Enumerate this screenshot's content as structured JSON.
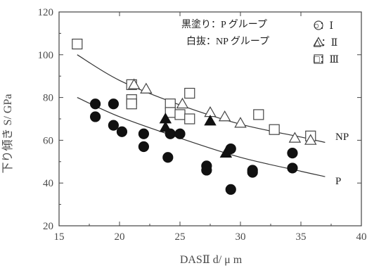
{
  "chart_data": {
    "type": "scatter",
    "xlabel": "DASⅡ   d/ μ m",
    "ylabel": "下り傾き    S/ GPa",
    "xlim": [
      15,
      40
    ],
    "ylim": [
      20,
      120
    ],
    "xticks": [
      15,
      20,
      25,
      30,
      35,
      40
    ],
    "yticks": [
      20,
      40,
      60,
      80,
      100,
      120
    ],
    "grid": false,
    "legend_fill_notes": [
      "黒塗り：P グループ",
      "白抜：NP グループ"
    ],
    "legend_markers": [
      {
        "symbol": "circle",
        "label": "○：Ⅰ"
      },
      {
        "symbol": "triangle",
        "label": "△：Ⅱ"
      },
      {
        "symbol": "square",
        "label": "□：Ⅲ"
      }
    ],
    "series": [
      {
        "name": "NP",
        "group": "NP",
        "filled": false,
        "points": [
          {
            "shape": "square",
            "x": 16.5,
            "y": 105
          },
          {
            "shape": "square",
            "x": 21.0,
            "y": 86
          },
          {
            "shape": "square",
            "x": 21.0,
            "y": 79
          },
          {
            "shape": "square",
            "x": 21.0,
            "y": 77
          },
          {
            "shape": "triangle",
            "x": 21.2,
            "y": 86
          },
          {
            "shape": "triangle",
            "x": 22.2,
            "y": 84
          },
          {
            "shape": "square",
            "x": 24.2,
            "y": 77
          },
          {
            "shape": "square",
            "x": 24.2,
            "y": 73
          },
          {
            "shape": "square",
            "x": 25.0,
            "y": 72
          },
          {
            "shape": "triangle",
            "x": 25.2,
            "y": 77
          },
          {
            "shape": "square",
            "x": 25.8,
            "y": 82
          },
          {
            "shape": "square",
            "x": 25.8,
            "y": 70
          },
          {
            "shape": "triangle",
            "x": 27.5,
            "y": 73
          },
          {
            "shape": "triangle",
            "x": 28.7,
            "y": 71
          },
          {
            "shape": "triangle",
            "x": 30.0,
            "y": 68
          },
          {
            "shape": "square",
            "x": 31.5,
            "y": 72
          },
          {
            "shape": "square",
            "x": 32.8,
            "y": 65
          },
          {
            "shape": "triangle",
            "x": 34.5,
            "y": 61
          },
          {
            "shape": "square",
            "x": 35.8,
            "y": 62
          },
          {
            "shape": "triangle",
            "x": 35.8,
            "y": 60
          }
        ]
      },
      {
        "name": "P",
        "group": "P",
        "filled": true,
        "points": [
          {
            "shape": "circle",
            "x": 18.0,
            "y": 77
          },
          {
            "shape": "circle",
            "x": 18.0,
            "y": 71
          },
          {
            "shape": "circle",
            "x": 19.5,
            "y": 77
          },
          {
            "shape": "circle",
            "x": 19.5,
            "y": 67
          },
          {
            "shape": "circle",
            "x": 20.2,
            "y": 64
          },
          {
            "shape": "circle",
            "x": 22.0,
            "y": 63
          },
          {
            "shape": "circle",
            "x": 22.0,
            "y": 57
          },
          {
            "shape": "circle",
            "x": 24.0,
            "y": 52
          },
          {
            "shape": "triangle",
            "x": 23.8,
            "y": 70
          },
          {
            "shape": "triangle",
            "x": 23.8,
            "y": 66
          },
          {
            "shape": "circle",
            "x": 24.2,
            "y": 63
          },
          {
            "shape": "circle",
            "x": 25.0,
            "y": 63
          },
          {
            "shape": "circle",
            "x": 27.2,
            "y": 48
          },
          {
            "shape": "circle",
            "x": 27.2,
            "y": 46
          },
          {
            "shape": "triangle",
            "x": 27.5,
            "y": 69
          },
          {
            "shape": "triangle",
            "x": 28.8,
            "y": 54
          },
          {
            "shape": "circle",
            "x": 29.2,
            "y": 56
          },
          {
            "shape": "circle",
            "x": 29.2,
            "y": 37
          },
          {
            "shape": "circle",
            "x": 31.0,
            "y": 46
          },
          {
            "shape": "circle",
            "x": 31.0,
            "y": 45
          },
          {
            "shape": "circle",
            "x": 34.3,
            "y": 54
          },
          {
            "shape": "circle",
            "x": 34.3,
            "y": 47
          }
        ]
      }
    ],
    "fit_curves": [
      {
        "label": "NP",
        "points": [
          [
            16.5,
            100
          ],
          [
            20,
            88
          ],
          [
            25,
            76.5
          ],
          [
            30,
            67.5
          ],
          [
            35,
            61.5
          ],
          [
            37,
            59
          ]
        ]
      },
      {
        "label": "P",
        "points": [
          [
            16.5,
            80
          ],
          [
            20,
            71
          ],
          [
            25,
            61
          ],
          [
            30,
            52
          ],
          [
            35,
            45.5
          ],
          [
            37,
            43
          ]
        ]
      }
    ]
  }
}
